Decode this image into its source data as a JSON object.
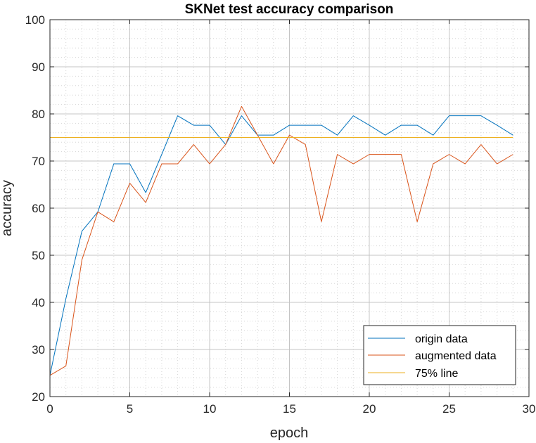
{
  "chart_data": {
    "type": "line",
    "title": "SKNet test accuracy comparison",
    "xlabel": "epoch",
    "ylabel": "accuracy",
    "xlim": [
      0,
      30
    ],
    "ylim": [
      20,
      100
    ],
    "xticks": [
      0,
      5,
      10,
      15,
      20,
      25,
      30
    ],
    "yticks": [
      20,
      30,
      40,
      50,
      60,
      70,
      80,
      90,
      100
    ],
    "grid": true,
    "minor_grid": true,
    "legend_position": "bottom-right",
    "series": [
      {
        "name": "origin data",
        "color": "#0072BD",
        "x": [
          0,
          1,
          2,
          3,
          4,
          5,
          6,
          7,
          8,
          9,
          10,
          11,
          12,
          13,
          14,
          15,
          16,
          17,
          18,
          19,
          20,
          21,
          22,
          23,
          24,
          25,
          26,
          27,
          28,
          29
        ],
        "values": [
          24.5,
          40.8,
          55.1,
          59.2,
          69.4,
          69.4,
          63.3,
          71.4,
          79.6,
          77.6,
          77.6,
          73.5,
          79.6,
          75.5,
          75.5,
          77.6,
          77.6,
          77.6,
          75.5,
          79.6,
          77.6,
          75.5,
          77.6,
          77.6,
          75.5,
          79.6,
          79.6,
          79.6,
          77.6,
          75.5
        ]
      },
      {
        "name": "augmented data",
        "color": "#D95319",
        "x": [
          0,
          1,
          2,
          3,
          4,
          5,
          6,
          7,
          8,
          9,
          10,
          11,
          12,
          13,
          14,
          15,
          16,
          17,
          18,
          19,
          20,
          21,
          22,
          23,
          24,
          25,
          26,
          27,
          28,
          29
        ],
        "values": [
          24.5,
          26.5,
          49.0,
          59.2,
          57.1,
          65.3,
          61.2,
          69.4,
          69.4,
          73.5,
          69.4,
          73.5,
          81.6,
          75.5,
          69.4,
          75.5,
          73.5,
          57.1,
          71.4,
          69.4,
          71.4,
          71.4,
          71.4,
          57.1,
          69.4,
          71.4,
          69.4,
          73.5,
          69.4,
          71.4
        ]
      },
      {
        "name": "75% line",
        "color": "#EDB120",
        "x": [
          0,
          29
        ],
        "values": [
          75,
          75
        ]
      }
    ]
  }
}
